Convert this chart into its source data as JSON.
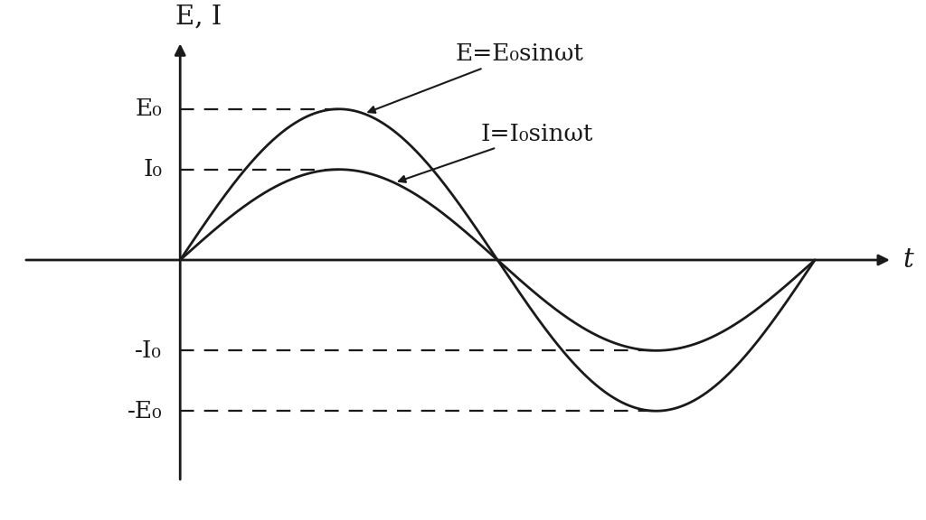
{
  "background_color": "#ffffff",
  "E_amplitude": 1.0,
  "I_amplitude": 0.6,
  "axis_y_label": "E, I",
  "axis_x_label": "t",
  "E_label": "E=E₀sinωt",
  "I_label": "I=I₀sinωt",
  "E0_label": "E₀",
  "I0_label": "I₀",
  "neg_E0_label": "-E₀",
  "neg_I0_label": "-I₀",
  "line_color": "#1a1a1a",
  "line_width": 2.0,
  "dashed_color": "#1a1a1a",
  "font_size_labels": 19,
  "font_size_axis_label": 21,
  "y_axis_x": 0.0,
  "x_plot_start": 0.0,
  "x_plot_end": 6.283185307,
  "xlim_left": -1.6,
  "xlim_right": 7.2,
  "ylim_bottom": -1.55,
  "ylim_top": 1.55
}
